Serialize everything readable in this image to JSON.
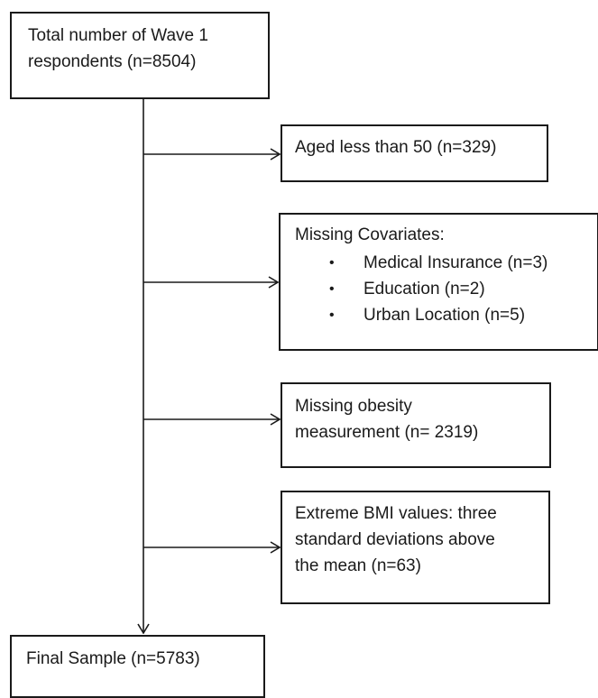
{
  "boxes": {
    "start": {
      "lines": [
        "Total number of Wave 1",
        "respondents (n=8504)"
      ]
    },
    "aged": {
      "lines": [
        "Aged less than 50 (n=329)"
      ]
    },
    "covariates": {
      "heading": "Missing Covariates:",
      "bullet_symbol": "•",
      "items": [
        "Medical Insurance (n=3)",
        "Education (n=2)",
        "Urban Location (n=5)"
      ]
    },
    "obesity": {
      "lines": [
        "Missing obesity",
        "measurement (n= 2319)"
      ]
    },
    "bmi": {
      "lines": [
        "Extreme BMI values: three",
        "standard deviations above",
        "the mean (n=63)"
      ]
    },
    "final": {
      "lines": [
        "Final Sample (n=5783)"
      ]
    }
  }
}
